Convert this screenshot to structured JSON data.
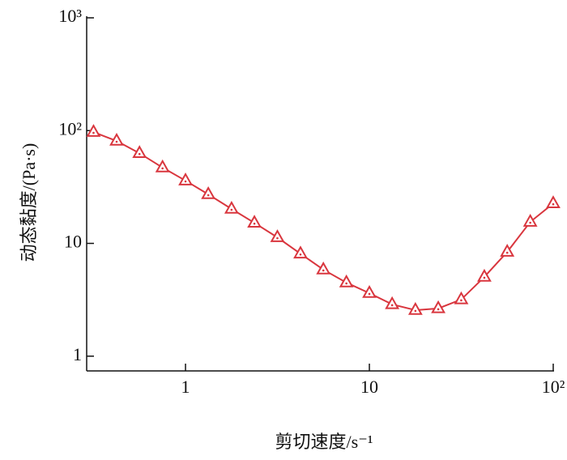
{
  "chart_data": {
    "type": "line",
    "x_label": "剪切速度/s⁻¹",
    "y_label": "动态黏度/(Pa·s)",
    "x": [
      0.316,
      0.422,
      0.562,
      0.75,
      1,
      1.33,
      1.78,
      2.37,
      3.16,
      4.22,
      5.62,
      7.5,
      10,
      13.3,
      17.8,
      23.7,
      31.6,
      42.2,
      56.2,
      75,
      100
    ],
    "series": [
      {
        "color": "#d9363e",
        "values": [
          97,
          81,
          63,
          47,
          36,
          27.2,
          20.2,
          15.2,
          11.3,
          8.1,
          5.85,
          4.49,
          3.62,
          2.88,
          2.56,
          2.65,
          3.18,
          5.04,
          8.4,
          15.5,
          22.6
        ]
      }
    ],
    "xscale": "log",
    "yscale": "log",
    "xlim": [
      0.29,
      100
    ],
    "ylim": [
      0.74,
      1000
    ],
    "xticks": [
      1,
      10,
      {
        "value": 100,
        "label": "10²"
      }
    ],
    "yticks": [
      1,
      10,
      {
        "value": 100,
        "label": "10²"
      },
      {
        "value": 1000,
        "label": "10³"
      }
    ]
  }
}
